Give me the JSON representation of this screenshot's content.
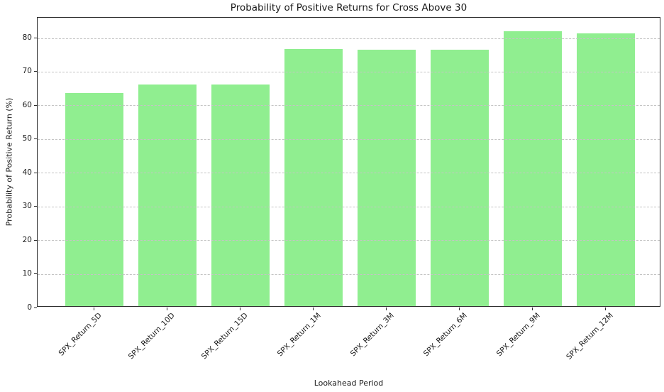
{
  "chart_data": {
    "type": "bar",
    "title": "Probability of Positive Returns for Cross Above 30",
    "xlabel": "Lookahead Period",
    "ylabel": "Probability of Positive Return (%)",
    "categories": [
      "SPX_Return_5D",
      "SPX_Return_10D",
      "SPX_Return_15D",
      "SPX_Return_1M",
      "SPX_Return_3M",
      "SPX_Return_6M",
      "SPX_Return_9M",
      "SPX_Return_12M"
    ],
    "values": [
      63.3,
      65.8,
      65.8,
      76.3,
      76.2,
      76.2,
      81.6,
      80.9
    ],
    "yticks": [
      0,
      10,
      20,
      30,
      40,
      50,
      60,
      70,
      80
    ],
    "ylim": [
      0,
      86
    ],
    "bar_color": "#90ee90",
    "grid": true,
    "grid_style": "dashed",
    "legend": "none"
  }
}
